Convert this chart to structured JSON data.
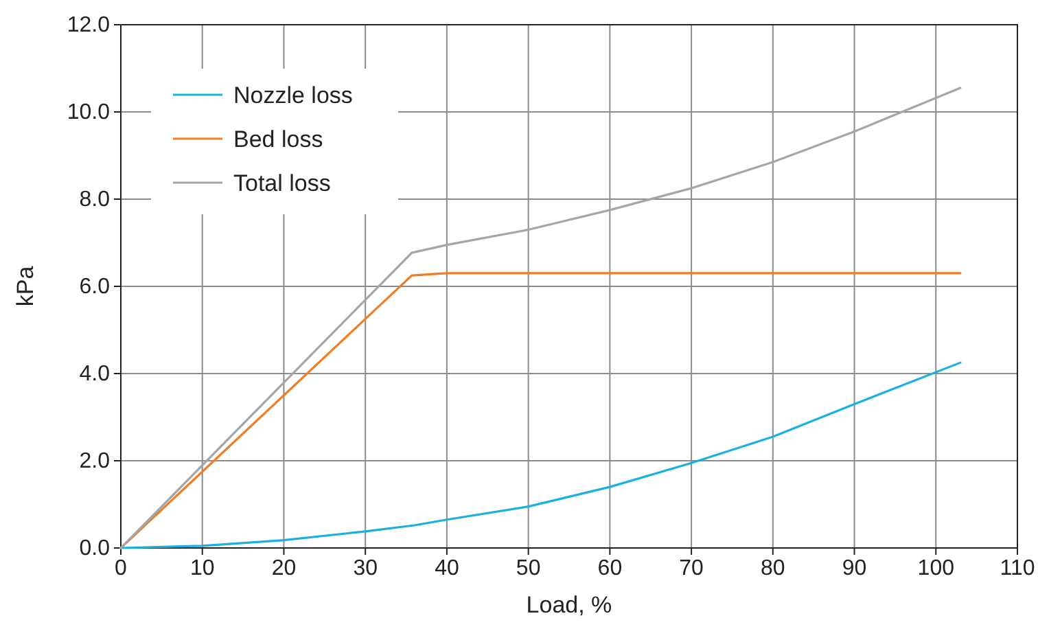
{
  "chart_data": {
    "type": "line",
    "xlabel": "Load, %",
    "ylabel": "kPa",
    "xlim": [
      0,
      110
    ],
    "xticks": [
      0,
      10,
      20,
      30,
      40,
      50,
      60,
      70,
      80,
      90,
      100,
      110
    ],
    "ylim": [
      0,
      12
    ],
    "yticks": [
      {
        "value": 0,
        "label": "0.0"
      },
      {
        "value": 2,
        "label": "2.0"
      },
      {
        "value": 4,
        "label": "4.0"
      },
      {
        "value": 6,
        "label": "6.0"
      },
      {
        "value": 8,
        "label": "8.0"
      },
      {
        "value": 10,
        "label": "10.0"
      },
      {
        "value": 12,
        "label": "12.0"
      }
    ],
    "grid": true,
    "legend": "top left",
    "marker": "none",
    "line_style": "solid",
    "series": [
      {
        "name": "Nozzle loss",
        "color": "#1ab0e0",
        "x": [
          0,
          10,
          20,
          30,
          36,
          40,
          50,
          60,
          70,
          80,
          90,
          103
        ],
        "values": [
          0,
          0.05,
          0.18,
          0.38,
          0.52,
          0.65,
          0.95,
          1.4,
          1.95,
          2.55,
          3.3,
          4.25
        ]
      },
      {
        "name": "Bed loss",
        "color": "#f07d22",
        "x": [
          0,
          35.7,
          40,
          103
        ],
        "values": [
          0,
          6.25,
          6.3,
          6.3
        ]
      },
      {
        "name": "Total loss",
        "color": "#a6a6a6",
        "x": [
          0,
          35.7,
          40,
          50,
          60,
          70,
          80,
          90,
          103
        ],
        "values": [
          0,
          6.77,
          6.95,
          7.3,
          7.75,
          8.25,
          8.85,
          9.55,
          10.55
        ]
      }
    ]
  }
}
